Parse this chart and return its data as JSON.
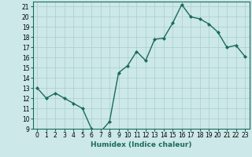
{
  "x": [
    0,
    1,
    2,
    3,
    4,
    5,
    6,
    7,
    8,
    9,
    10,
    11,
    12,
    13,
    14,
    15,
    16,
    17,
    18,
    19,
    20,
    21,
    22,
    23
  ],
  "y": [
    13,
    12,
    12.5,
    12,
    11.5,
    11,
    9,
    8.7,
    9.7,
    14.5,
    15.2,
    16.6,
    15.7,
    17.8,
    17.9,
    19.4,
    21.2,
    20,
    19.8,
    19.3,
    18.5,
    17,
    17.2,
    16.1
  ],
  "line_color": "#1a6b5a",
  "marker": "D",
  "marker_size": 2.0,
  "bg_color": "#cce8e8",
  "grid_color": "#aacece",
  "xlabel": "Humidex (Indice chaleur)",
  "ylim": [
    9,
    21.5
  ],
  "xlim": [
    -0.5,
    23.5
  ],
  "yticks": [
    9,
    10,
    11,
    12,
    13,
    14,
    15,
    16,
    17,
    18,
    19,
    20,
    21
  ],
  "xticks": [
    0,
    1,
    2,
    3,
    4,
    5,
    6,
    7,
    8,
    9,
    10,
    11,
    12,
    13,
    14,
    15,
    16,
    17,
    18,
    19,
    20,
    21,
    22,
    23
  ],
  "tick_fontsize": 5.5,
  "xlabel_fontsize": 6.5,
  "line_width": 1.0
}
